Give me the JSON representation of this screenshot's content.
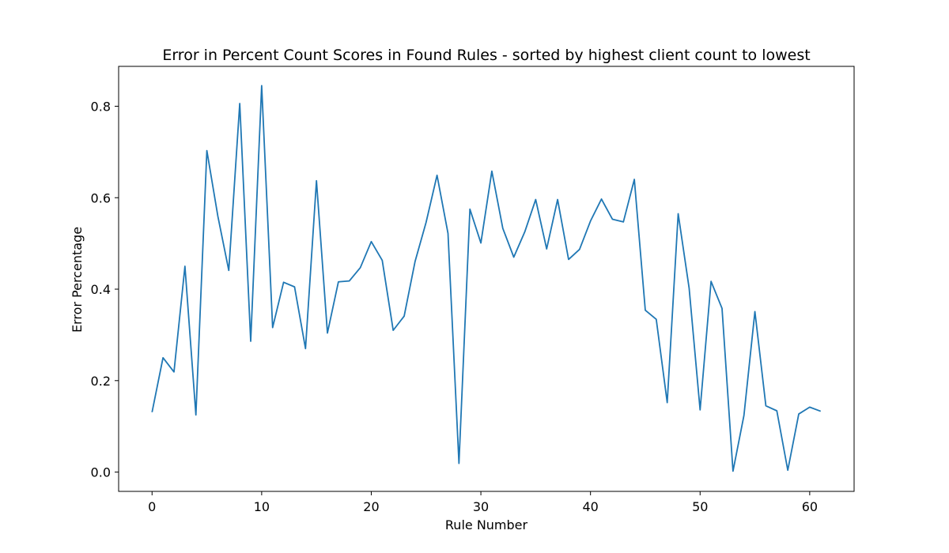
{
  "chart_data": {
    "type": "line",
    "title": "Error in Percent Count Scores in Found Rules - sorted by highest client count to lowest",
    "xlabel": "Rule Number",
    "ylabel": "Error Percentage",
    "xlim": [
      -3.05,
      64.05
    ],
    "ylim": [
      -0.0422,
      0.8872
    ],
    "xticks": [
      0,
      10,
      20,
      30,
      40,
      50,
      60
    ],
    "yticks": [
      0.0,
      0.2,
      0.4,
      0.6,
      0.8
    ],
    "ytick_labels": [
      "0.0",
      "0.2",
      "0.4",
      "0.6",
      "0.8"
    ],
    "grid": false,
    "series": [
      {
        "color": "#1f77b4",
        "x": [
          0,
          1,
          2,
          3,
          4,
          5,
          6,
          7,
          8,
          9,
          10,
          11,
          12,
          13,
          14,
          15,
          16,
          17,
          18,
          19,
          20,
          21,
          22,
          23,
          24,
          25,
          26,
          27,
          28,
          29,
          30,
          31,
          32,
          33,
          34,
          35,
          36,
          37,
          38,
          39,
          40,
          41,
          42,
          43,
          44,
          45,
          46,
          47,
          48,
          49,
          50,
          51,
          52,
          53,
          54,
          55,
          56,
          57,
          58,
          59,
          60,
          61
        ],
        "y": [
          0.131,
          0.25,
          0.219,
          0.45,
          0.125,
          0.703,
          0.56,
          0.441,
          0.806,
          0.286,
          0.845,
          0.316,
          0.415,
          0.405,
          0.27,
          0.637,
          0.304,
          0.416,
          0.418,
          0.447,
          0.504,
          0.463,
          0.31,
          0.341,
          0.461,
          0.546,
          0.649,
          0.522,
          0.019,
          0.575,
          0.501,
          0.658,
          0.533,
          0.47,
          0.525,
          0.596,
          0.488,
          0.596,
          0.465,
          0.487,
          0.549,
          0.597,
          0.553,
          0.547,
          0.64,
          0.354,
          0.334,
          0.152,
          0.565,
          0.402,
          0.136,
          0.417,
          0.358,
          0.002,
          0.124,
          0.351,
          0.145,
          0.134,
          0.004,
          0.127,
          0.142,
          0.133
        ]
      }
    ]
  }
}
